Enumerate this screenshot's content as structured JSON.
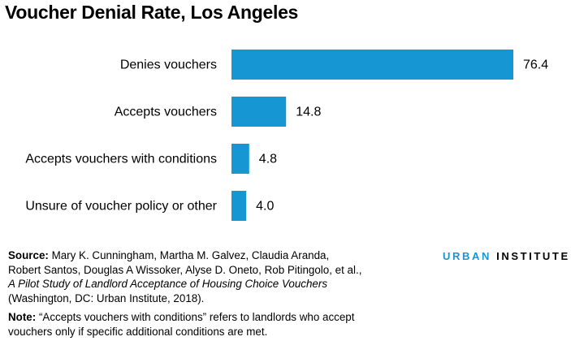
{
  "title": "Voucher Denial Rate, Los Angeles",
  "chart_data": {
    "type": "bar",
    "orientation": "horizontal",
    "title": "Voucher Denial Rate, Los Angeles",
    "categories": [
      "Denies vouchers",
      "Accepts vouchers",
      "Accepts vouchers with conditions",
      "Unsure of voucher policy or other"
    ],
    "values": [
      76.4,
      14.8,
      4.8,
      4.0
    ],
    "value_labels": [
      "76.4",
      "14.8",
      "4.8",
      "4.0"
    ],
    "xlim": [
      0,
      76.4
    ],
    "grid": false,
    "bar_color": "#1696d2"
  },
  "footer": {
    "source_label": "Source:",
    "source_line1": " Mary K. Cunningham, Martha M. Galvez, Claudia Aranda,",
    "source_line2": "Robert Santos, Douglas A Wissoker, Alyse D. Oneto, Rob Pitingolo, et al.,",
    "source_title": "A Pilot Study of Landlord Acceptance of Housing Choice Vouchers",
    "source_line4": "(Washington, DC: Urban Institute, 2018).",
    "note_label": "Note:",
    "note_text": " “Accepts vouchers with conditions” refers to landlords who accept vouchers only if specific additional conditions are met."
  },
  "logo": {
    "urban": "URBAN",
    "institute": " INSTITUTE"
  }
}
